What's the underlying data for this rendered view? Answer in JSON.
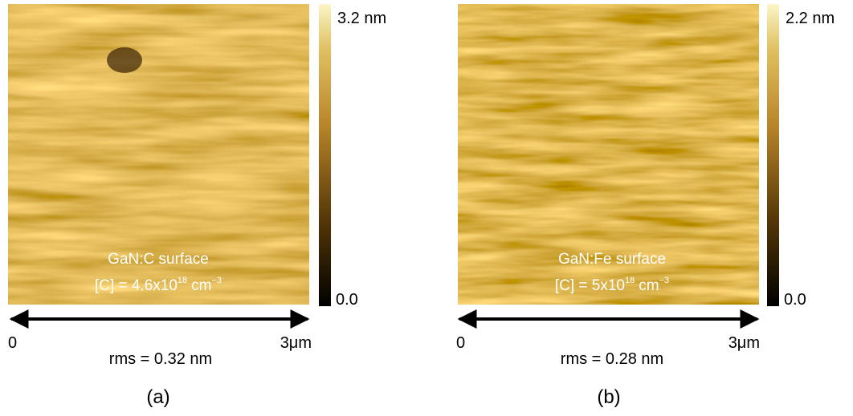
{
  "panels": [
    {
      "label_line1": "GaN:C surface",
      "label_line2": {
        "prefix": "[C] = 4.6x10",
        "exp1": "18",
        "unit": "cm",
        "exp2": "−3"
      },
      "colorbar": {
        "max": "3.2 nm",
        "min": "0.0"
      },
      "scale": {
        "start": "0",
        "end": "3μm"
      },
      "rms": "rms = 0.32 nm",
      "caption": "(a)"
    },
    {
      "label_line1": "GaN:Fe surface",
      "label_line2": {
        "prefix": "[C] = 5x10",
        "exp1": "18",
        "unit": "cm",
        "exp2": "−3"
      },
      "colorbar": {
        "max": "2.2 nm",
        "min": "0.0"
      },
      "scale": {
        "start": "0",
        "end": "3μm"
      },
      "rms": "rms = 0.28 nm",
      "caption": "(b)"
    }
  ]
}
